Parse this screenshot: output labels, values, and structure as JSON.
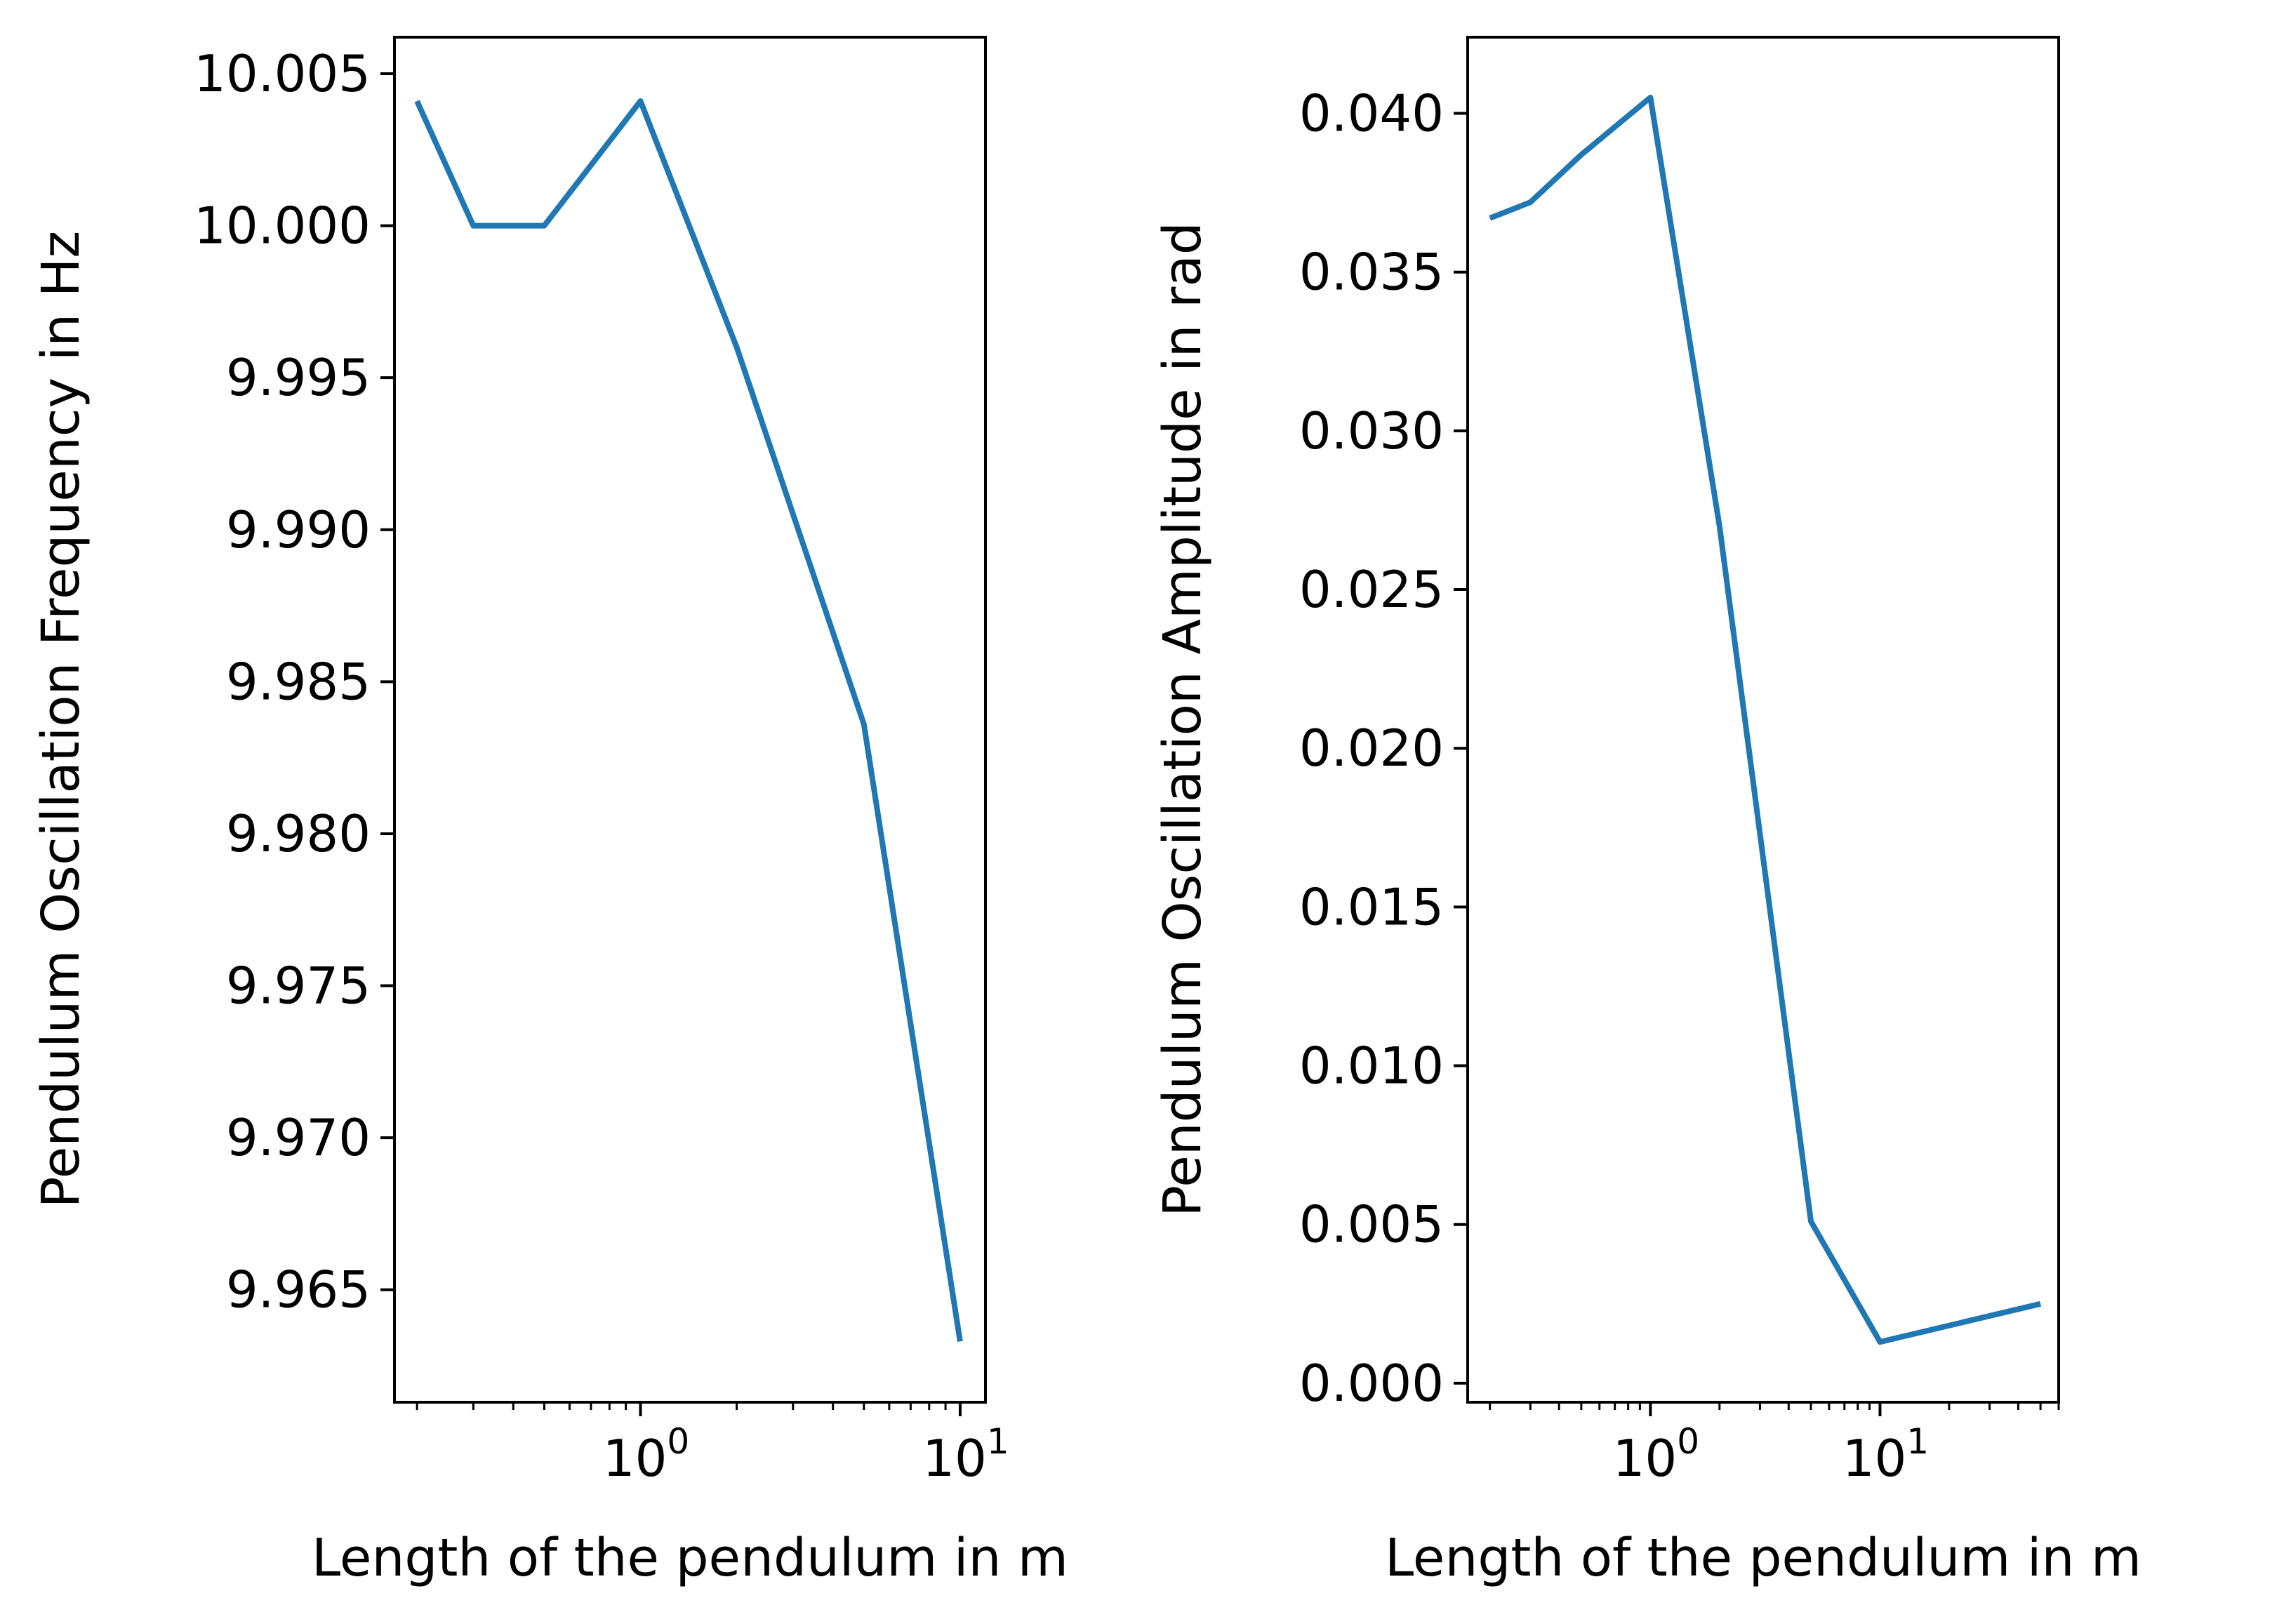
{
  "chart_data": [
    {
      "type": "line",
      "xlabel": "Length of the pendulum in m",
      "ylabel": "Pendulum Oscillation Frequency in Hz",
      "xscale": "log",
      "xlim": [
        0.17,
        12
      ],
      "ylim": [
        9.9613,
        10.0062
      ],
      "grid": false,
      "x_ticks": [
        {
          "value": 1,
          "label": "10",
          "exp": "0"
        },
        {
          "value": 10,
          "label": "10",
          "exp": "1"
        }
      ],
      "y_ticks": [
        "9.965",
        "9.970",
        "9.975",
        "9.980",
        "9.985",
        "9.990",
        "9.995",
        "10.000",
        "10.005"
      ],
      "series": [
        {
          "color": "#1f77b4",
          "x": [
            0.2,
            0.3,
            0.5,
            1,
            2,
            5,
            10
          ],
          "y": [
            10.0041,
            10.0,
            10.0,
            10.0041,
            9.996,
            9.9836,
            9.9633
          ]
        }
      ]
    },
    {
      "type": "line",
      "xlabel": "Length of the pendulum in m",
      "ylabel": "Pendulum Oscillation Amplitude in rad",
      "xscale": "log",
      "xlim": [
        0.16,
        60
      ],
      "ylim": [
        -0.0006,
        0.0424
      ],
      "grid": false,
      "x_ticks": [
        {
          "value": 1,
          "label": "10",
          "exp": "0"
        },
        {
          "value": 10,
          "label": "10",
          "exp": "1"
        }
      ],
      "y_ticks": [
        "0.000",
        "0.005",
        "0.010",
        "0.015",
        "0.020",
        "0.025",
        "0.030",
        "0.035",
        "0.040"
      ],
      "series": [
        {
          "color": "#1f77b4",
          "x": [
            0.2,
            0.3,
            0.5,
            1,
            2,
            5,
            10,
            50
          ],
          "y": [
            0.0367,
            0.0372,
            0.0387,
            0.0405,
            0.027,
            0.0051,
            0.0013,
            0.0025
          ]
        }
      ]
    }
  ]
}
